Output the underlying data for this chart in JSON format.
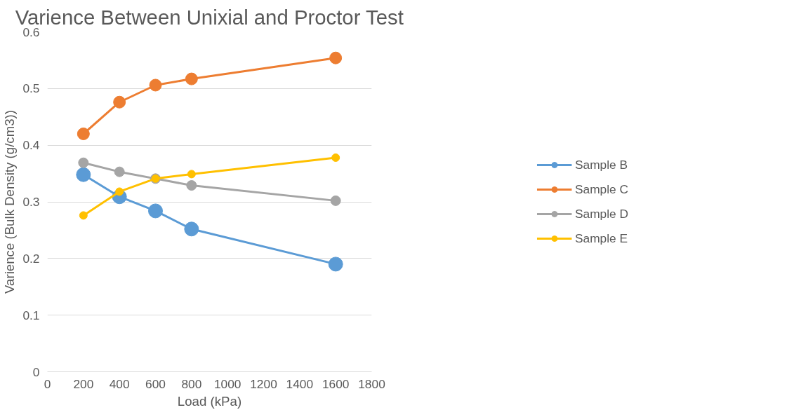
{
  "chart_data": {
    "type": "line",
    "title": "Varience Between Unixial and Proctor Test",
    "xlabel": "Load (kPa)",
    "ylabel": "Varience (Bulk Density (g/cm3))",
    "x": [
      200,
      400,
      600,
      800,
      1600
    ],
    "series": [
      {
        "name": "Sample B",
        "color": "#5b9bd5",
        "values": [
          0.348,
          0.309,
          0.284,
          0.252,
          0.19
        ]
      },
      {
        "name": "Sample C",
        "color": "#ed7d31",
        "values": [
          0.42,
          0.476,
          0.506,
          0.517,
          0.554
        ]
      },
      {
        "name": "Sample D",
        "color": "#a5a5a5",
        "values": [
          0.369,
          0.353,
          0.341,
          0.329,
          0.302
        ]
      },
      {
        "name": "Sample E",
        "color": "#ffc000",
        "values": [
          0.276,
          0.318,
          0.341,
          0.349,
          0.378
        ]
      }
    ],
    "xlim": [
      0,
      1800
    ],
    "xticks": [
      0,
      200,
      400,
      600,
      800,
      1000,
      1200,
      1400,
      1600,
      1800
    ],
    "ylim": [
      0,
      0.6
    ],
    "yticks": [
      0,
      0.1,
      0.2,
      0.3,
      0.4,
      0.5,
      {
        "value": 0.6,
        "label": "0.6"
      }
    ],
    "grid": "y",
    "legend": "right",
    "marker": "circle",
    "line_style": "solid"
  }
}
